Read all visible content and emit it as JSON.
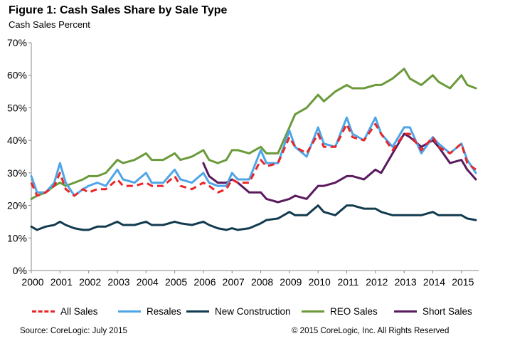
{
  "title": "Figure 1: Cash Sales Share by Sale Type",
  "subtitle": "Cash Sales Percent",
  "source": "Source: CoreLogic: July 2015",
  "copyright": "© 2015 CoreLogic, Inc. All Rights Reserved",
  "colors": {
    "all_sales": "#e8262a",
    "resales": "#4ea5e8",
    "new_construction": "#123b4f",
    "reo_sales": "#6a9a3a",
    "short_sales": "#5a1a5e"
  },
  "chart_data": {
    "type": "line",
    "xlabel": "",
    "ylabel": "",
    "xlim": [
      2000,
      2015.6
    ],
    "ylim": [
      0,
      70
    ],
    "x_ticks": [
      "2000",
      "2001",
      "2002",
      "2003",
      "2004",
      "2005",
      "2006",
      "2007",
      "2008",
      "2009",
      "2010",
      "2011",
      "2012",
      "2013",
      "2014",
      "2015"
    ],
    "y_ticks": [
      "0%",
      "10%",
      "20%",
      "30%",
      "40%",
      "50%",
      "60%",
      "70%"
    ],
    "grid": false,
    "legend_position": "bottom",
    "series": [
      {
        "name": "All Sales",
        "style": "dashed",
        "x": [
          2000,
          2000.2,
          2000.5,
          2000.8,
          2001,
          2001.2,
          2001.5,
          2001.8,
          2002,
          2002.3,
          2002.6,
          2003,
          2003.2,
          2003.6,
          2004,
          2004.2,
          2004.6,
          2005,
          2005.2,
          2005.6,
          2006,
          2006.2,
          2006.5,
          2006.8,
          2007,
          2007.2,
          2007.6,
          2008,
          2008.2,
          2008.6,
          2009,
          2009.2,
          2009.6,
          2010,
          2010.2,
          2010.6,
          2011,
          2011.2,
          2011.6,
          2012,
          2012.2,
          2012.6,
          2013,
          2013.2,
          2013.6,
          2014,
          2014.2,
          2014.6,
          2015,
          2015.2,
          2015.5
        ],
        "y": [
          27,
          23,
          24,
          26,
          30,
          25,
          23,
          25,
          24,
          25,
          25,
          28,
          26,
          26,
          27,
          26,
          26,
          29,
          26,
          25,
          27,
          26,
          24,
          25,
          28,
          27,
          27,
          34,
          32,
          33,
          41,
          38,
          36,
          42,
          38,
          38,
          45,
          41,
          40,
          45,
          42,
          37,
          42,
          42,
          37,
          41,
          38,
          36,
          39,
          33,
          31
        ]
      },
      {
        "name": "Resales",
        "style": "solid",
        "x": [
          2000,
          2000.2,
          2000.5,
          2000.8,
          2001,
          2001.2,
          2001.5,
          2001.8,
          2002,
          2002.3,
          2002.6,
          2003,
          2003.2,
          2003.6,
          2004,
          2004.2,
          2004.6,
          2005,
          2005.2,
          2005.6,
          2006,
          2006.2,
          2006.5,
          2006.8,
          2007,
          2007.2,
          2007.6,
          2008,
          2008.2,
          2008.6,
          2009,
          2009.2,
          2009.6,
          2010,
          2010.2,
          2010.6,
          2011,
          2011.2,
          2011.6,
          2012,
          2012.2,
          2012.6,
          2013,
          2013.2,
          2013.6,
          2014,
          2014.2,
          2014.6,
          2015,
          2015.2,
          2015.5
        ],
        "y": [
          29,
          24,
          24,
          27,
          33,
          27,
          23,
          25,
          26,
          27,
          26,
          31,
          28,
          27,
          30,
          27,
          27,
          31,
          28,
          27,
          30,
          27,
          26,
          26,
          30,
          28,
          28,
          37,
          33,
          33,
          43,
          38,
          35,
          44,
          39,
          38,
          47,
          42,
          40,
          47,
          42,
          38,
          44,
          44,
          36,
          41,
          39,
          36,
          39,
          34,
          30
        ]
      },
      {
        "name": "New Construction",
        "style": "solid",
        "x": [
          2000,
          2000.2,
          2000.5,
          2000.8,
          2001,
          2001.2,
          2001.5,
          2001.8,
          2002,
          2002.3,
          2002.6,
          2003,
          2003.2,
          2003.6,
          2004,
          2004.2,
          2004.6,
          2005,
          2005.2,
          2005.6,
          2006,
          2006.2,
          2006.5,
          2006.8,
          2007,
          2007.2,
          2007.6,
          2008,
          2008.2,
          2008.6,
          2009,
          2009.2,
          2009.6,
          2010,
          2010.2,
          2010.6,
          2011,
          2011.2,
          2011.6,
          2012,
          2012.2,
          2012.6,
          2013,
          2013.2,
          2013.6,
          2014,
          2014.2,
          2014.6,
          2015,
          2015.2,
          2015.5
        ],
        "y": [
          13.5,
          12.5,
          13.5,
          14,
          15,
          14,
          13,
          12.5,
          12.5,
          13.5,
          13.5,
          15,
          14,
          14,
          15,
          14,
          14,
          15,
          14.5,
          14,
          15,
          14,
          13,
          12.5,
          13,
          12.5,
          13,
          14.5,
          15.5,
          16,
          18,
          17,
          17,
          20,
          18,
          17,
          20,
          20,
          19,
          19,
          18,
          17,
          17,
          17,
          17,
          18,
          17,
          17,
          17,
          16,
          15.5
        ]
      },
      {
        "name": "REO Sales",
        "style": "solid",
        "x": [
          2000,
          2000.2,
          2000.5,
          2000.8,
          2001,
          2001.2,
          2001.5,
          2001.8,
          2002,
          2002.3,
          2002.6,
          2003,
          2003.2,
          2003.6,
          2004,
          2004.2,
          2004.6,
          2005,
          2005.2,
          2005.6,
          2006,
          2006.2,
          2006.5,
          2006.8,
          2007,
          2007.2,
          2007.6,
          2008,
          2008.2,
          2008.6,
          2009,
          2009.2,
          2009.6,
          2010,
          2010.2,
          2010.6,
          2011,
          2011.2,
          2011.6,
          2012,
          2012.2,
          2012.6,
          2013,
          2013.2,
          2013.6,
          2014,
          2014.2,
          2014.6,
          2015,
          2015.2,
          2015.5
        ],
        "y": [
          22,
          23,
          24,
          26,
          27,
          26,
          27,
          28,
          29,
          29,
          30,
          34,
          33,
          34,
          36,
          34,
          34,
          36,
          34,
          35,
          37,
          34,
          33,
          34,
          37,
          37,
          36,
          38,
          36,
          36,
          44,
          48,
          50,
          54,
          52,
          55,
          57,
          56,
          56,
          57,
          57,
          59,
          62,
          59,
          57,
          60,
          58,
          56,
          60,
          57,
          56
        ]
      },
      {
        "name": "Short Sales",
        "style": "solid",
        "x": [
          2006,
          2006.2,
          2006.5,
          2006.8,
          2007,
          2007.2,
          2007.6,
          2008,
          2008.2,
          2008.6,
          2009,
          2009.2,
          2009.6,
          2010,
          2010.2,
          2010.6,
          2011,
          2011.2,
          2011.6,
          2012,
          2012.2,
          2012.6,
          2013,
          2013.2,
          2013.6,
          2014,
          2014.2,
          2014.6,
          2015,
          2015.2,
          2015.5
        ],
        "y": [
          33,
          29,
          27,
          27,
          28,
          27,
          24,
          24,
          22,
          21,
          22,
          23,
          22,
          26,
          26,
          27,
          29,
          29,
          28,
          31,
          30,
          36,
          42,
          41,
          38,
          40,
          38,
          33,
          34,
          31,
          28
        ]
      }
    ]
  }
}
